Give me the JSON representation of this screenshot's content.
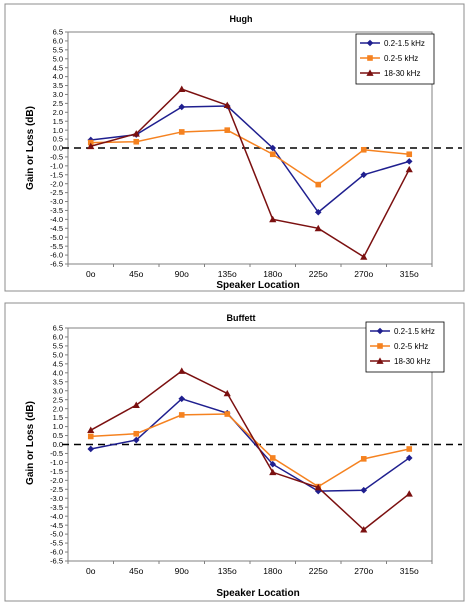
{
  "chart_data": [
    {
      "type": "line",
      "title": "Hugh",
      "xlabel": "Speaker Location",
      "ylabel": "Gain or Loss (dB)",
      "categories": [
        "0o",
        "45o",
        "90o",
        "135o",
        "180o",
        "225o",
        "270o",
        "315o"
      ],
      "ylim": [
        -6.5,
        6.5
      ],
      "ystep": 0.5,
      "legend_position": "top-right",
      "reference_line": 0,
      "series": [
        {
          "name": "0.2-1.5 kHz",
          "color": "#1f1f8f",
          "marker": "diamond",
          "values": [
            0.45,
            0.75,
            2.3,
            2.35,
            0.0,
            -3.6,
            -1.5,
            -0.75
          ]
        },
        {
          "name": "0.2-5 kHz",
          "color": "#f58220",
          "marker": "square",
          "values": [
            0.3,
            0.35,
            0.9,
            1.0,
            -0.35,
            -2.05,
            -0.1,
            -0.35
          ]
        },
        {
          "name": "18-30 kHz",
          "color": "#7b1010",
          "marker": "triangle",
          "values": [
            0.1,
            0.8,
            3.3,
            2.4,
            -4.0,
            -4.5,
            -6.1,
            -1.2
          ]
        }
      ]
    },
    {
      "type": "line",
      "title": "Buffett",
      "xlabel": "Speaker Location",
      "ylabel": "Gain or Loss (dB)",
      "categories": [
        "0o",
        "45o",
        "90o",
        "135o",
        "180o",
        "225o",
        "270o",
        "315o"
      ],
      "ylim": [
        -6.5,
        6.5
      ],
      "ystep": 0.5,
      "legend_position": "top-right",
      "reference_line": 0,
      "series": [
        {
          "name": "0.2-1.5 kHz",
          "color": "#1f1f8f",
          "marker": "diamond",
          "values": [
            -0.25,
            0.25,
            2.55,
            1.75,
            -1.1,
            -2.6,
            -2.55,
            -0.75
          ]
        },
        {
          "name": "0.2-5 kHz",
          "color": "#f58220",
          "marker": "square",
          "values": [
            0.45,
            0.6,
            1.65,
            1.7,
            -0.75,
            -2.35,
            -0.8,
            -0.25
          ]
        },
        {
          "name": "18-30 kHz",
          "color": "#7b1010",
          "marker": "triangle",
          "values": [
            0.8,
            2.2,
            4.1,
            2.85,
            -1.55,
            -2.4,
            -4.75,
            -2.75
          ]
        }
      ]
    }
  ]
}
